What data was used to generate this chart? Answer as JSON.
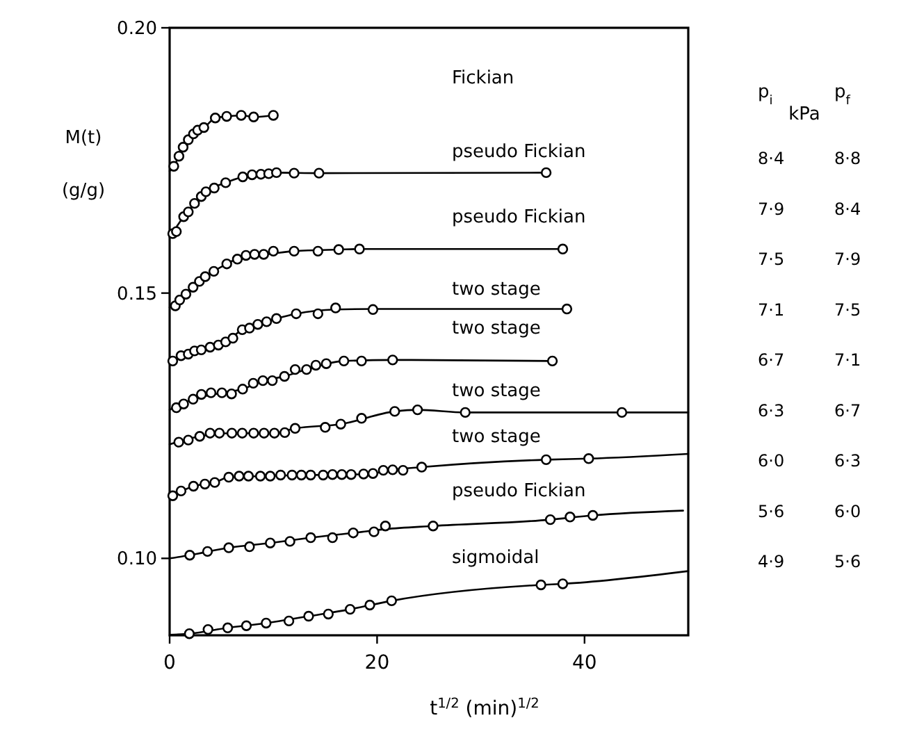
{
  "chart_data": {
    "type": "line",
    "ylabel": "M(t)\n(g/g)",
    "xlabel": "t$^{1/2}$    (min)$^{1/2}$",
    "xlim": [
      0,
      50
    ],
    "ylim": [
      0.0855,
      0.2
    ],
    "xticks": [
      0,
      20,
      40
    ],
    "yticks": [
      {
        "value": 0.1,
        "label": "0.10"
      },
      {
        "value": 0.15,
        "label": "0.15"
      },
      {
        "value": 0.2,
        "label": "0.20"
      }
    ],
    "series": [
      {
        "type": "line",
        "marker": "none",
        "color": "#000000",
        "x": [
          0,
          0.4,
          0.9,
          1.3,
          1.8,
          2.3,
          2.7,
          3.3,
          4.4,
          5.5,
          6.9,
          8.1,
          10.0
        ],
        "values": [
          0.173,
          0.1739,
          0.1758,
          0.1775,
          0.1789,
          0.18,
          0.1807,
          0.1812,
          0.183,
          0.1833,
          0.1835,
          0.1832,
          0.1835
        ]
      },
      {
        "type": "scatter",
        "marker": "circle",
        "color": "#000000",
        "x": [
          0.4,
          0.9,
          1.3,
          1.8,
          2.3,
          2.7,
          3.3,
          4.4,
          5.5,
          6.9,
          8.1,
          10.0
        ],
        "values": [
          0.1739,
          0.1758,
          0.1775,
          0.1789,
          0.18,
          0.1807,
          0.1812,
          0.183,
          0.1833,
          0.1835,
          0.1832,
          0.1835
        ]
      },
      {
        "type": "line",
        "marker": "none",
        "color": "#000000",
        "x": [
          0,
          1.35,
          2.4,
          3.5,
          5.4,
          7.05,
          8.8,
          10.3,
          14.4,
          36.3
        ],
        "values": [
          0.1605,
          0.1644,
          0.1669,
          0.1691,
          0.1708,
          0.1719,
          0.1724,
          0.1727,
          0.1726,
          0.1727
        ]
      },
      {
        "type": "scatter",
        "marker": "circle",
        "color": "#000000",
        "x": [
          0.3,
          0.65,
          1.35,
          1.8,
          2.4,
          3.05,
          3.5,
          4.3,
          5.4,
          7.05,
          7.95,
          8.8,
          9.55,
          10.3,
          12.0,
          14.4,
          36.3
        ],
        "values": [
          0.1612,
          0.1616,
          0.1644,
          0.1653,
          0.1669,
          0.1682,
          0.1691,
          0.1698,
          0.1708,
          0.1719,
          0.1723,
          0.1724,
          0.1725,
          0.1727,
          0.1726,
          0.1726,
          0.1727
        ]
      },
      {
        "type": "line",
        "marker": "none",
        "color": "#000000",
        "x": [
          0,
          1.57,
          2.87,
          4.26,
          5.51,
          7.36,
          9.07,
          12.0,
          16.3,
          18.3,
          37.9
        ],
        "values": [
          0.1473,
          0.1498,
          0.1522,
          0.1541,
          0.1555,
          0.1571,
          0.1573,
          0.1579,
          0.1582,
          0.1583,
          0.1583
        ]
      },
      {
        "type": "scatter",
        "marker": "circle",
        "color": "#000000",
        "x": [
          0.55,
          0.97,
          1.57,
          2.26,
          2.87,
          3.43,
          4.26,
          5.51,
          6.53,
          7.36,
          8.19,
          9.07,
          10.0,
          12.0,
          14.3,
          16.3,
          18.3,
          37.9
        ],
        "values": [
          0.1476,
          0.1487,
          0.1498,
          0.1511,
          0.1522,
          0.1531,
          0.1541,
          0.1555,
          0.1564,
          0.1571,
          0.1573,
          0.1573,
          0.1579,
          0.1579,
          0.1579,
          0.1582,
          0.1583,
          0.1583
        ]
      },
      {
        "type": "line",
        "marker": "none",
        "color": "#000000",
        "x": [
          0,
          1.8,
          3.9,
          5.4,
          7.0,
          8.5,
          10.3,
          12.2,
          16.0,
          19.6,
          38.3
        ],
        "values": [
          0.1368,
          0.1385,
          0.1398,
          0.1408,
          0.1431,
          0.1441,
          0.1452,
          0.1461,
          0.1469,
          0.147,
          0.147
        ]
      },
      {
        "type": "scatter",
        "marker": "circle",
        "color": "#000000",
        "x": [
          0.3,
          1.1,
          1.8,
          2.4,
          3.05,
          3.9,
          4.7,
          5.4,
          6.1,
          7.0,
          7.7,
          8.5,
          9.35,
          10.3,
          12.2,
          14.3,
          16.0,
          19.6,
          38.3
        ],
        "values": [
          0.1372,
          0.1382,
          0.1385,
          0.1391,
          0.1393,
          0.1398,
          0.1402,
          0.1408,
          0.1415,
          0.1431,
          0.1434,
          0.1441,
          0.1446,
          0.1452,
          0.1461,
          0.1461,
          0.1472,
          0.1469,
          0.147
        ]
      },
      {
        "type": "line",
        "marker": "none",
        "color": "#000000",
        "x": [
          0,
          2.26,
          5.04,
          7.04,
          8.99,
          11.07,
          13.2,
          16.8,
          21.5,
          36.9
        ],
        "values": [
          0.128,
          0.13,
          0.1312,
          0.1319,
          0.1335,
          0.1343,
          0.1356,
          0.1372,
          0.1374,
          0.1372
        ]
      },
      {
        "type": "scatter",
        "marker": "circle",
        "color": "#000000",
        "x": [
          0.65,
          1.35,
          2.26,
          3.06,
          3.99,
          5.04,
          5.97,
          7.04,
          8.06,
          8.99,
          9.9,
          11.07,
          12.1,
          13.2,
          14.1,
          15.1,
          16.8,
          18.5,
          21.5,
          36.9
        ],
        "values": [
          0.1284,
          0.1291,
          0.13,
          0.1309,
          0.1312,
          0.1312,
          0.131,
          0.1319,
          0.133,
          0.1335,
          0.1335,
          0.1343,
          0.1356,
          0.1356,
          0.1364,
          0.1367,
          0.1372,
          0.1372,
          0.1374,
          0.1372
        ]
      },
      {
        "type": "line",
        "marker": "none",
        "color": "#000000",
        "x": [
          0,
          2.9,
          6.0,
          10.1,
          12.1,
          16.5,
          21.7,
          23.9,
          28.5,
          43.6,
          50
        ],
        "values": [
          0.1215,
          0.123,
          0.1236,
          0.1236,
          0.1245,
          0.1253,
          0.1277,
          0.128,
          0.1275,
          0.1275,
          0.1275
        ]
      },
      {
        "type": "scatter",
        "marker": "circle",
        "color": "#000000",
        "x": [
          0.88,
          1.8,
          2.9,
          3.9,
          4.8,
          6.0,
          7.0,
          8.1,
          9.1,
          10.1,
          11.1,
          12.1,
          15.0,
          16.5,
          18.5,
          21.7,
          23.9,
          28.5,
          43.6
        ],
        "values": [
          0.1219,
          0.1223,
          0.123,
          0.1236,
          0.1236,
          0.1236,
          0.1236,
          0.1236,
          0.1236,
          0.1236,
          0.1237,
          0.1245,
          0.1247,
          0.1253,
          0.1264,
          0.1277,
          0.128,
          0.1275,
          0.1275
        ]
      },
      {
        "type": "line",
        "marker": "none",
        "color": "#000000",
        "x": [
          0,
          2.3,
          4.35,
          5.7,
          8.75,
          12.7,
          17.5,
          19.6,
          21.5,
          24.3,
          36.3,
          40.4,
          50
        ],
        "values": [
          0.1115,
          0.1136,
          0.1143,
          0.1153,
          0.1155,
          0.1157,
          0.1158,
          0.116,
          0.1167,
          0.1172,
          0.1186,
          0.1188,
          0.1197
        ]
      },
      {
        "type": "scatter",
        "marker": "circle",
        "color": "#000000",
        "x": [
          0.3,
          1.1,
          2.3,
          3.4,
          4.35,
          5.7,
          6.7,
          7.6,
          8.75,
          9.7,
          10.7,
          11.8,
          12.7,
          13.6,
          14.8,
          15.7,
          16.6,
          17.5,
          18.7,
          19.6,
          20.6,
          21.5,
          22.5,
          24.3,
          36.3,
          40.4
        ],
        "values": [
          0.1118,
          0.1127,
          0.1136,
          0.114,
          0.1143,
          0.1153,
          0.1155,
          0.1155,
          0.1155,
          0.1155,
          0.1157,
          0.1157,
          0.1157,
          0.1157,
          0.1157,
          0.1158,
          0.1158,
          0.1158,
          0.1159,
          0.116,
          0.1166,
          0.1167,
          0.1166,
          0.1172,
          0.1186,
          0.1188
        ]
      },
      {
        "type": "line",
        "marker": "none",
        "color": "#000000",
        "x": [
          0,
          1.94,
          5.7,
          9.7,
          13.6,
          17.7,
          20.8,
          25.4,
          36.7,
          40.8,
          49.5
        ],
        "values": [
          0.1,
          0.1006,
          0.102,
          0.1029,
          0.1039,
          0.1048,
          0.1055,
          0.1061,
          0.1073,
          0.1081,
          0.109
        ]
      },
      {
        "type": "scatter",
        "marker": "circle",
        "color": "#000000",
        "x": [
          1.94,
          3.65,
          5.7,
          7.7,
          9.7,
          11.6,
          13.6,
          15.7,
          17.7,
          19.7,
          20.8,
          25.4,
          36.7,
          38.6,
          40.8
        ],
        "values": [
          0.1006,
          0.1013,
          0.102,
          0.1022,
          0.1029,
          0.1032,
          0.1039,
          0.1039,
          0.1048,
          0.105,
          0.1061,
          0.1061,
          0.1073,
          0.1078,
          0.1081
        ]
      },
      {
        "type": "line",
        "marker": "none",
        "color": "#000000",
        "x": [
          0,
          1.9,
          5.6,
          9.3,
          13.4,
          17.4,
          21.4,
          35.8,
          37.9,
          50
        ],
        "values": [
          0.0856,
          0.0858,
          0.0869,
          0.0878,
          0.0891,
          0.0904,
          0.092,
          0.095,
          0.0952,
          0.0976
        ]
      },
      {
        "type": "scatter",
        "marker": "circle",
        "color": "#000000",
        "x": [
          1.9,
          3.7,
          5.6,
          7.4,
          9.3,
          11.5,
          13.4,
          15.3,
          17.4,
          19.3,
          21.4,
          35.8,
          37.9
        ],
        "values": [
          0.0858,
          0.0866,
          0.0869,
          0.0873,
          0.0878,
          0.0882,
          0.0891,
          0.0895,
          0.0904,
          0.0912,
          0.092,
          0.095,
          0.0952
        ]
      }
    ],
    "annotations": [
      "Fickian",
      "pseudo Fickian",
      "pseudo Fickian",
      "two stage",
      "two stage",
      "two stage",
      "two stage",
      "pseudo Fickian",
      "sigmoidal",
      "p$_{i}$",
      "kPa",
      "p$_{f}$",
      "8·4",
      "8·8",
      "7·9",
      "8·4",
      "7·5",
      "7·9",
      "7·1",
      "7·5",
      "6·7",
      "7·1",
      "6·3",
      "6·7",
      "6·0",
      "6·3",
      "5·6",
      "6·0",
      "4·9",
      "5·6"
    ]
  }
}
